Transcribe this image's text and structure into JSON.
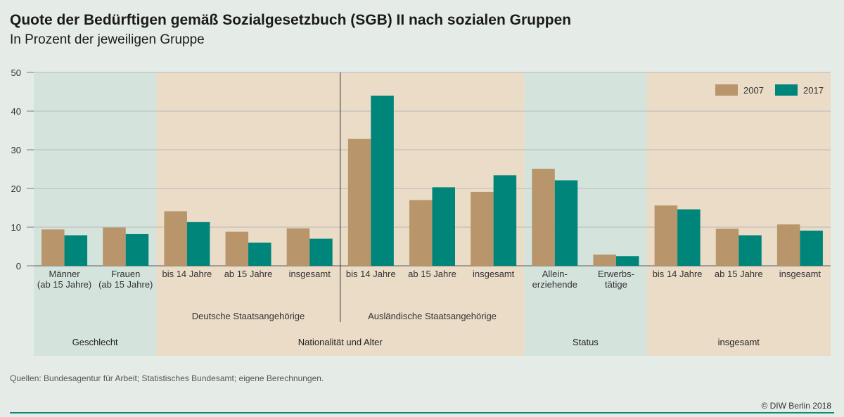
{
  "chart_data": {
    "type": "bar",
    "title": "Quote der Bedürftigen gemäß Sozialgesetzbuch (SGB) II nach sozialen Gruppen",
    "subtitle": "In Prozent der jeweiligen Gruppe",
    "ylim": [
      0,
      50
    ],
    "yticks": [
      0,
      10,
      20,
      30,
      40,
      50
    ],
    "grid": true,
    "legend_position": "top-right",
    "categories": [
      [
        "Männer",
        "(ab 15 Jahre)"
      ],
      [
        "Frauen",
        "(ab 15 Jahre)"
      ],
      [
        "bis 14 Jahre"
      ],
      [
        "ab 15 Jahre"
      ],
      [
        "insgesamt"
      ],
      [
        "bis 14 Jahre"
      ],
      [
        "ab 15 Jahre"
      ],
      [
        "insgesamt"
      ],
      [
        "Allein-",
        "erziehende"
      ],
      [
        "Erwerbs-",
        "tätige"
      ],
      [
        "bis 14 Jahre"
      ],
      [
        "ab 15 Jahre"
      ],
      [
        "insgesamt"
      ]
    ],
    "series": [
      {
        "name": "2007",
        "color": "#b8956a",
        "values": [
          9.4,
          9.9,
          14.1,
          8.8,
          9.7,
          32.8,
          17.0,
          19.1,
          25.1,
          2.9,
          15.6,
          9.6,
          10.7
        ]
      },
      {
        "name": "2017",
        "color": "#00857a",
        "values": [
          7.9,
          8.2,
          11.3,
          6.0,
          7.0,
          44.0,
          20.3,
          23.4,
          22.1,
          2.5,
          14.6,
          7.9,
          9.1
        ]
      }
    ],
    "subgroups": [
      {
        "label": "Deutsche Staatsangehörige",
        "from": 2,
        "to": 4
      },
      {
        "label": "Ausländische Staatsangehörige",
        "from": 5,
        "to": 7
      }
    ],
    "groups": [
      {
        "label": "Geschlecht",
        "from": 0,
        "to": 1,
        "shade": "green"
      },
      {
        "label": "Nationalität und Alter",
        "from": 2,
        "to": 7,
        "shade": "beige"
      },
      {
        "label": "Status",
        "from": 8,
        "to": 9,
        "shade": "green"
      },
      {
        "label": "insgesamt",
        "from": 10,
        "to": 12,
        "shade": "beige"
      }
    ],
    "separator_after": 4,
    "colors": {
      "green_band": "#d5e3dd",
      "beige_band": "#eadcc7"
    }
  },
  "footer": {
    "source": "Quellen: Bundesagentur für Arbeit; Statistisches Bundesamt; eigene Berechnungen.",
    "copyright": "© DIW Berlin 2018"
  }
}
